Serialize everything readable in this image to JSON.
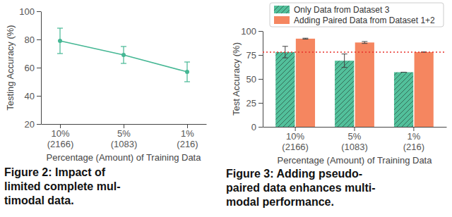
{
  "chart_data": [
    {
      "type": "line",
      "caption": "Figure 2: Impact of\nlimited complete mul-\ntimodal data.",
      "x_label": "Percentage (Amount) of Training Data",
      "y_label": "Testing Accuracy (%)",
      "categories": [
        "10%\n(2166)",
        "5%\n(1083)",
        "1%\n(216)"
      ],
      "values": [
        79,
        69,
        57
      ],
      "errors": [
        9,
        6,
        7
      ],
      "color": "#45b794",
      "marker": "o",
      "ylim": [
        20,
        100
      ],
      "yticks": [
        20,
        40,
        60,
        80,
        100
      ]
    },
    {
      "type": "bar",
      "caption": "Figure 3: Adding pseudo-\npaired data enhances multi-\nmodal performance.",
      "x_label": "Percentage (Amount) of Training Data",
      "y_label": "Test Accuracy (%)",
      "categories": [
        "10%\n(2166)",
        "5%\n(1083)",
        "1%\n(216)"
      ],
      "series": [
        {
          "name": "Only Data from Dataset 3",
          "color": "#52c09b",
          "values": [
            78,
            69,
            57
          ],
          "errors": [
            6,
            7,
            0
          ]
        },
        {
          "name": "Adding Paired Data from Dataset 1+2",
          "color": "#f58660",
          "values": [
            92,
            88,
            78
          ],
          "errors": [
            0.5,
            1,
            0
          ]
        }
      ],
      "reference_line": {
        "value": 78,
        "color": "#e8312a",
        "line_style": "dotted"
      },
      "legend": "top",
      "ylim": [
        0,
        100
      ],
      "yticks": [
        0,
        25,
        50,
        75,
        100
      ]
    }
  ]
}
